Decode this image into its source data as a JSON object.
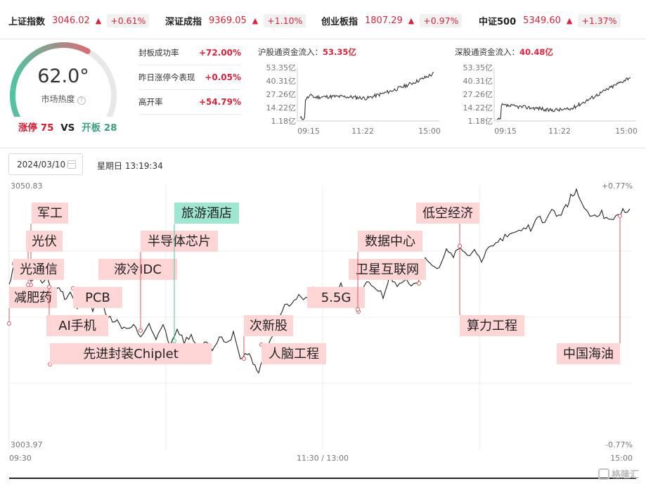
{
  "indices": [
    {
      "name": "上证指数",
      "price": "3046.02",
      "change": "+0.61%"
    },
    {
      "name": "深证成指",
      "price": "9369.05",
      "change": "+1.10%"
    },
    {
      "name": "创业板指",
      "price": "1807.29",
      "change": "+0.97%"
    },
    {
      "name": "中证500",
      "price": "5349.60",
      "change": "+1.37%"
    }
  ],
  "heat": {
    "value": "62.0°",
    "label": "市场热度",
    "help": "?",
    "level": 0.62
  },
  "limit": {
    "up_label": "涨停",
    "up_count": "75",
    "vs": "VS",
    "open_label": "开板",
    "open_count": "28"
  },
  "metrics": [
    {
      "label": "封板成功率",
      "value": "+72.00%"
    },
    {
      "label": "昨日涨停今表现",
      "value": "+0.05%"
    },
    {
      "label": "高开率",
      "value": "+54.79%"
    }
  ],
  "flows": [
    {
      "title": "沪股通资金流入：",
      "value": "53.35亿",
      "y_ticks": [
        "53.35亿",
        "40.31亿",
        "27.26亿",
        "14.22亿",
        "1.18亿"
      ],
      "x_ticks": [
        "09:15",
        "11:22",
        "15:00"
      ]
    },
    {
      "title": "深股通资金流入：",
      "value": "40.48亿",
      "y_ticks": [
        "53.35亿",
        "40.31亿",
        "27.26亿",
        "14.22亿",
        "1.18亿"
      ],
      "x_ticks": [
        "09:15",
        "11:22",
        "15:00"
      ]
    }
  ],
  "date": {
    "value": "2024/03/10",
    "weekday": "星期日 13:19:34"
  },
  "chart_data": {
    "type": "line",
    "y_high": "3050.83",
    "y_low": "3003.97",
    "pct_high": "+0.77%",
    "pct_low": "-0.77%",
    "ylim": [
      3003.97,
      3050.83
    ],
    "x_ticks": [
      "09:30",
      "11:30 / 13:00",
      "15:00"
    ],
    "tags": [
      "军工",
      "光伏",
      "光通信",
      "减肥药",
      "PCB",
      "AI手机",
      "先进封装Chiplet",
      "液冷IDC",
      "半导体芯片",
      "旅游酒店",
      "次新股",
      "人脑工程",
      "5.5G",
      "卫星互联网",
      "数据中心",
      "低空经济",
      "算力工程",
      "中国海油"
    ]
  },
  "colors": {
    "up": "#e0203a",
    "down": "#3aa17e",
    "tag_bg": "#fdd5d5",
    "tag_teal": "#9ee6d2",
    "line": "#222222"
  },
  "watermark": "格隆汇"
}
